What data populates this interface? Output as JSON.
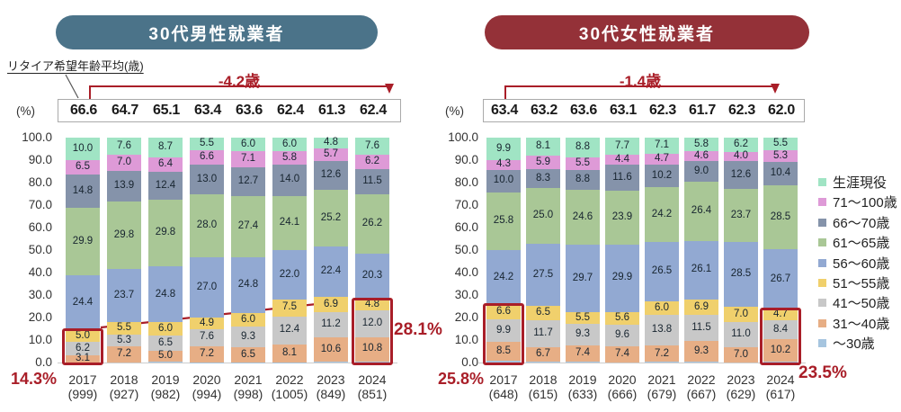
{
  "labels": {
    "unit": "(%)",
    "avg_axis_label": "リタイア希望年齢平均(歳)"
  },
  "colors": {
    "accent_red": "#a91e28",
    "male_title_bg": "#4b7389",
    "female_title_bg": "#943138"
  },
  "legend": {
    "items": [
      {
        "label": "生涯現役",
        "color": "#a0e4c4"
      },
      {
        "label": "71～100歳",
        "color": "#de9ad7"
      },
      {
        "label": "66～70歳",
        "color": "#8593aa"
      },
      {
        "label": "61～65歳",
        "color": "#a9c796"
      },
      {
        "label": "56～60歳",
        "color": "#92a9d2"
      },
      {
        "label": "51～55歳",
        "color": "#f0d06c"
      },
      {
        "label": "41～50歳",
        "color": "#c8c8c8"
      },
      {
        "label": "31～40歳",
        "color": "#e7ae85"
      },
      {
        "label": "～30歳",
        "color": "#a6c5df"
      }
    ]
  },
  "chart_data": [
    {
      "type": "bar",
      "stacked": true,
      "title": "30代男性就業者",
      "title_color": "#4b7389",
      "ylabel": "(%)",
      "ylim": [
        0,
        100
      ],
      "y_ticks": [
        100.0,
        90.0,
        80.0,
        70.0,
        60.0,
        50.0,
        40.0,
        30.0,
        20.0,
        10.0,
        0.0
      ],
      "categories": [
        "2017",
        "2018",
        "2019",
        "2020",
        "2021",
        "2022",
        "2023",
        "2024"
      ],
      "sample_sizes": [
        999,
        927,
        982,
        994,
        998,
        1005,
        849,
        851
      ],
      "avg_values": [
        66.6,
        64.7,
        65.1,
        63.4,
        63.6,
        62.4,
        61.3,
        62.4
      ],
      "avg_change_label": "-4.2歳",
      "series": [
        {
          "name": "生涯現役",
          "color": "#a0e4c4",
          "values": [
            10.0,
            7.6,
            8.7,
            5.5,
            6.0,
            6.0,
            4.8,
            7.6
          ]
        },
        {
          "name": "71～100歳",
          "color": "#de9ad7",
          "values": [
            6.5,
            7.0,
            6.4,
            6.6,
            7.1,
            5.8,
            5.7,
            6.2
          ]
        },
        {
          "name": "66～70歳",
          "color": "#8593aa",
          "values": [
            14.8,
            13.9,
            12.4,
            13.0,
            12.7,
            14.0,
            12.6,
            11.5
          ]
        },
        {
          "name": "61～65歳",
          "color": "#a9c796",
          "values": [
            29.9,
            29.8,
            29.8,
            28.0,
            27.4,
            24.1,
            25.2,
            26.2
          ]
        },
        {
          "name": "56～60歳",
          "color": "#92a9d2",
          "values": [
            24.4,
            23.7,
            24.8,
            27.0,
            24.8,
            22.0,
            22.4,
            20.3
          ]
        },
        {
          "name": "51～55歳",
          "color": "#f0d06c",
          "values": [
            5.0,
            5.5,
            6.0,
            4.9,
            6.0,
            7.5,
            6.9,
            4.8
          ]
        },
        {
          "name": "41～50歳",
          "color": "#c8c8c8",
          "values": [
            6.2,
            5.3,
            6.5,
            7.6,
            9.3,
            12.4,
            11.2,
            12.0
          ]
        },
        {
          "name": "31～40歳",
          "color": "#e7ae85",
          "values": [
            3.1,
            7.2,
            5.0,
            7.2,
            6.5,
            8.1,
            10.6,
            10.8
          ]
        }
      ],
      "remainder_series_name": "～30歳",
      "callouts": {
        "start": "14.3%",
        "end": "28.1%",
        "trend_arrow": true
      }
    },
    {
      "type": "bar",
      "stacked": true,
      "title": "30代女性就業者",
      "title_color": "#943138",
      "ylabel": "(%)",
      "ylim": [
        0,
        100
      ],
      "y_ticks": [
        100.0,
        90.0,
        80.0,
        70.0,
        60.0,
        50.0,
        40.0,
        30.0,
        20.0,
        10.0,
        0.0
      ],
      "categories": [
        "2017",
        "2018",
        "2019",
        "2020",
        "2021",
        "2022",
        "2023",
        "2024"
      ],
      "sample_sizes": [
        648,
        615,
        633,
        666,
        679,
        667,
        629,
        617
      ],
      "avg_values": [
        63.4,
        63.2,
        63.6,
        63.1,
        62.3,
        61.7,
        62.3,
        62.0
      ],
      "avg_change_label": "-1.4歳",
      "series": [
        {
          "name": "生涯現役",
          "color": "#a0e4c4",
          "values": [
            9.9,
            8.1,
            8.8,
            7.7,
            7.1,
            5.8,
            6.2,
            5.5
          ]
        },
        {
          "name": "71～100歳",
          "color": "#de9ad7",
          "values": [
            4.3,
            5.9,
            5.5,
            4.4,
            4.7,
            4.6,
            4.0,
            5.3
          ]
        },
        {
          "name": "66～70歳",
          "color": "#8593aa",
          "values": [
            10.0,
            8.3,
            8.8,
            11.6,
            10.2,
            9.0,
            12.6,
            10.4
          ]
        },
        {
          "name": "61～65歳",
          "color": "#a9c796",
          "values": [
            25.8,
            25.0,
            24.6,
            23.9,
            24.2,
            26.4,
            23.7,
            28.5
          ]
        },
        {
          "name": "56～60歳",
          "color": "#92a9d2",
          "values": [
            24.2,
            27.5,
            29.7,
            29.9,
            26.5,
            26.1,
            28.5,
            26.7
          ]
        },
        {
          "name": "51～55歳",
          "color": "#f0d06c",
          "values": [
            6.6,
            6.5,
            5.5,
            5.6,
            6.0,
            6.9,
            7.0,
            4.7
          ]
        },
        {
          "name": "41～50歳",
          "color": "#c8c8c8",
          "values": [
            9.9,
            11.7,
            9.3,
            9.6,
            13.8,
            11.5,
            11.0,
            8.4
          ]
        },
        {
          "name": "31～40歳",
          "color": "#e7ae85",
          "values": [
            8.5,
            6.7,
            7.4,
            7.4,
            7.2,
            9.3,
            7.0,
            10.2
          ]
        }
      ],
      "remainder_series_name": "～30歳",
      "callouts": {
        "start": "25.8%",
        "end": "23.5%",
        "trend_arrow": false
      }
    }
  ]
}
